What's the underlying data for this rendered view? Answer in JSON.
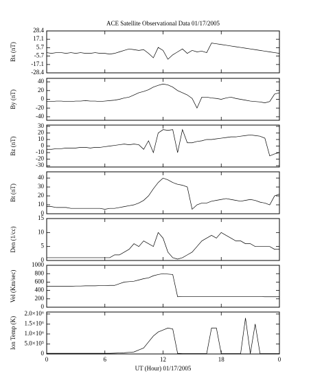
{
  "chart_data": [
    {
      "type": "line",
      "title": "ACE Satellite Observational Data   01/17/2005",
      "y_label": "Bx (nT)",
      "x": [
        0,
        0.5,
        1,
        1.5,
        2,
        2.5,
        3,
        3.5,
        4,
        4.5,
        5,
        5.5,
        6,
        6.5,
        7,
        7.5,
        8,
        8.5,
        9,
        9.5,
        10,
        10.5,
        11,
        11.5,
        12,
        12.5,
        13,
        13.5,
        14,
        14.5,
        15,
        15.5,
        16,
        16.5,
        17,
        17.5,
        18,
        18.5,
        19,
        19.5,
        20,
        20.5,
        21,
        21.5,
        22,
        22.5,
        23,
        23.5,
        24
      ],
      "values": [
        -1,
        -2,
        -1,
        -1,
        -2,
        -1,
        -2,
        -1,
        -2,
        -2,
        -1,
        -2,
        -2,
        -3,
        -2,
        0,
        2,
        4,
        3,
        2,
        3,
        -2,
        -8,
        6,
        2,
        -10,
        -4,
        0,
        4,
        -2,
        2,
        0,
        1,
        -1,
        12,
        11,
        10,
        9,
        8,
        7,
        6,
        5,
        4,
        3,
        2,
        1,
        0,
        -1,
        -2
      ],
      "xlim": [
        0,
        24
      ],
      "xticks": [
        0,
        6,
        12,
        18,
        {
          "value": 24,
          "label": "0"
        }
      ],
      "ylim": [
        -28.4,
        28.4
      ],
      "yticks": [
        28.4,
        17.1,
        5.7,
        -5.7,
        -17.1,
        -28.4
      ]
    },
    {
      "type": "line",
      "y_label": "By (nT)",
      "x": [
        0,
        0.5,
        1,
        1.5,
        2,
        2.5,
        3,
        3.5,
        4,
        4.5,
        5,
        5.5,
        6,
        6.5,
        7,
        7.5,
        8,
        8.5,
        9,
        9.5,
        10,
        10.5,
        11,
        11.5,
        12,
        12.5,
        13,
        13.5,
        14,
        14.5,
        15,
        15.5,
        16,
        16.5,
        17,
        17.5,
        18,
        18.5,
        19,
        19.5,
        20,
        20.5,
        21,
        21.5,
        22,
        22.5,
        23,
        23.5,
        24
      ],
      "values": [
        -5,
        -5,
        -4,
        -4,
        -5,
        -5,
        -4,
        -4,
        -3,
        -4,
        -4,
        -5,
        -4,
        -3,
        -2,
        0,
        3,
        5,
        10,
        15,
        18,
        22,
        28,
        32,
        35,
        33,
        28,
        20,
        15,
        10,
        2,
        -20,
        5,
        5,
        3,
        2,
        0,
        3,
        5,
        2,
        0,
        -2,
        -4,
        -5,
        -6,
        -8,
        -5,
        12,
        15
      ],
      "xlim": [
        0,
        24
      ],
      "xticks": [
        0,
        6,
        12,
        18,
        {
          "value": 24,
          "label": "0"
        }
      ],
      "ylim": [
        -48,
        48
      ],
      "yticks": [
        40,
        20,
        0,
        -20,
        -40
      ]
    },
    {
      "type": "line",
      "y_label": "Bz (nT)",
      "x": [
        0,
        0.5,
        1,
        1.5,
        2,
        2.5,
        3,
        3.5,
        4,
        4.5,
        5,
        5.5,
        6,
        6.5,
        7,
        7.5,
        8,
        8.5,
        9,
        9.5,
        10,
        10.5,
        11,
        11.5,
        12,
        12.5,
        13,
        13.5,
        14,
        14.5,
        15,
        15.5,
        16,
        16.5,
        17,
        17.5,
        18,
        18.5,
        19,
        19.5,
        20,
        20.5,
        21,
        21.5,
        22,
        22.5,
        23,
        23.5,
        24
      ],
      "values": [
        -5,
        -5,
        -4,
        -4,
        -3,
        -3,
        -3,
        -2,
        -2,
        -3,
        -2,
        -2,
        -1,
        0,
        1,
        2,
        3,
        2,
        3,
        2,
        -5,
        8,
        -10,
        20,
        25,
        24,
        25,
        -10,
        25,
        5,
        5,
        7,
        8,
        10,
        10,
        11,
        12,
        13,
        14,
        14,
        15,
        16,
        17,
        16,
        15,
        12,
        -15,
        -12,
        -10
      ],
      "xlim": [
        0,
        24
      ],
      "xticks": [
        0,
        6,
        12,
        18,
        {
          "value": 24,
          "label": "0"
        }
      ],
      "ylim": [
        -32,
        32
      ],
      "yticks": [
        30,
        20,
        10,
        0,
        -10,
        -20,
        -30
      ]
    },
    {
      "type": "line",
      "y_label": "Bt (nT)",
      "x": [
        0,
        0.5,
        1,
        1.5,
        2,
        2.5,
        3,
        3.5,
        4,
        4.5,
        5,
        5.5,
        6,
        6.5,
        7,
        7.5,
        8,
        8.5,
        9,
        9.5,
        10,
        10.5,
        11,
        11.5,
        12,
        12.5,
        13,
        13.5,
        14,
        14.5,
        15,
        15.5,
        16,
        16.5,
        17,
        17.5,
        18,
        18.5,
        19,
        19.5,
        20,
        20.5,
        21,
        21.5,
        22,
        22.5,
        23,
        23.5,
        24
      ],
      "values": [
        8,
        8,
        7,
        7,
        7,
        6,
        6,
        6,
        6,
        6,
        6,
        6,
        5,
        6,
        6,
        7,
        8,
        9,
        10,
        12,
        15,
        20,
        28,
        35,
        40,
        38,
        35,
        33,
        32,
        30,
        5,
        10,
        12,
        12,
        14,
        15,
        16,
        17,
        16,
        15,
        14,
        15,
        16,
        15,
        13,
        12,
        10,
        20,
        22
      ],
      "xlim": [
        0,
        24
      ],
      "xticks": [
        0,
        6,
        12,
        18,
        {
          "value": 24,
          "label": "0"
        }
      ],
      "ylim": [
        0,
        47
      ],
      "yticks": [
        0,
        10,
        20,
        30,
        40
      ]
    },
    {
      "type": "line",
      "y_label": "Den (1/cc)",
      "x": [
        0,
        0.5,
        1,
        1.5,
        2,
        2.5,
        3,
        3.5,
        4,
        4.5,
        5,
        5.5,
        6,
        6.5,
        7,
        7.5,
        8,
        8.5,
        9,
        9.5,
        10,
        10.5,
        11,
        11.5,
        12,
        12.5,
        13,
        13.5,
        14,
        14.5,
        15,
        15.5,
        16,
        16.5,
        17,
        17.5,
        18,
        18.5,
        19,
        19.5,
        20,
        20.5,
        21,
        21.5,
        22,
        22.5,
        23,
        23.5,
        24
      ],
      "values": [
        1,
        1,
        1,
        1,
        1,
        1,
        1,
        1,
        1,
        1,
        1,
        1,
        1,
        1,
        2,
        2,
        3,
        4,
        6,
        5,
        7,
        6,
        5,
        10,
        8,
        3,
        1,
        0.5,
        1,
        2,
        3,
        5,
        7,
        8,
        9,
        8,
        10,
        9,
        8,
        7,
        7,
        6,
        6,
        5,
        5,
        5,
        5,
        4,
        4
      ],
      "xlim": [
        0,
        24
      ],
      "xticks": [
        0,
        6,
        12,
        18,
        {
          "value": 24,
          "label": "0"
        }
      ],
      "ylim": [
        0,
        15
      ],
      "yticks": [
        0,
        5,
        10,
        15
      ]
    },
    {
      "type": "line",
      "y_label": "Vel (Km/sec)",
      "x": [
        0,
        0.5,
        1,
        1.5,
        2,
        2.5,
        3,
        3.5,
        4,
        4.5,
        5,
        5.5,
        6,
        6.5,
        7,
        7.5,
        8,
        8.5,
        9,
        9.5,
        10,
        10.5,
        11,
        11.5,
        12,
        12.5,
        13,
        13.5,
        14,
        14.5,
        15,
        15.5,
        16,
        16.5,
        17,
        17.5,
        18,
        18.5,
        19,
        19.5,
        20,
        20.5,
        21,
        21.5,
        22,
        22.5,
        23,
        23.5,
        24
      ],
      "values": [
        500,
        500,
        500,
        500,
        500,
        500,
        505,
        505,
        510,
        510,
        510,
        515,
        515,
        520,
        520,
        560,
        600,
        610,
        620,
        650,
        680,
        700,
        750,
        780,
        800,
        790,
        780,
        250,
        255,
        255,
        255,
        255,
        255,
        255,
        255,
        255,
        255,
        255,
        255,
        255,
        255,
        255,
        255,
        255,
        255,
        250,
        250,
        250,
        250
      ],
      "xlim": [
        0,
        24
      ],
      "xticks": [
        0,
        6,
        12,
        18,
        {
          "value": 24,
          "label": "0"
        }
      ],
      "ylim": [
        0,
        1000
      ],
      "yticks": [
        0,
        200,
        400,
        600,
        800,
        1000
      ]
    },
    {
      "type": "line",
      "y_label": "Ion Temp (K)",
      "x_label": "UT (Hour)   01/17/2005",
      "x": [
        0,
        0.5,
        1,
        1.5,
        2,
        2.5,
        3,
        3.5,
        4,
        4.5,
        5,
        5.5,
        6,
        6.5,
        7,
        7.5,
        8,
        8.5,
        9,
        9.5,
        10,
        10.5,
        11,
        11.5,
        12,
        12.5,
        13,
        13.5,
        14,
        14.5,
        15,
        15.5,
        16,
        16.5,
        17,
        17.5,
        18,
        18.5,
        19,
        19.5,
        20,
        20.5,
        21,
        21.5,
        22,
        22.5,
        23,
        23.5,
        24
      ],
      "values": [
        30000,
        30000,
        30000,
        30000,
        30000,
        30000,
        30000,
        30000,
        30000,
        30000,
        30000,
        30000,
        30000,
        30000,
        40000,
        50000,
        60000,
        80000,
        100000,
        200000,
        300000,
        600000,
        900000,
        1100000,
        1200000,
        1300000,
        1250000,
        30000,
        20000,
        20000,
        20000,
        20000,
        20000,
        20000,
        1300000,
        1300000,
        20000,
        20000,
        20000,
        20000,
        20000,
        1800000,
        20000,
        1500000,
        20000,
        20000,
        20000,
        20000,
        20000
      ],
      "xlim": [
        0,
        24
      ],
      "xticks": [
        0,
        6,
        12,
        18,
        {
          "value": 24,
          "label": "0"
        }
      ],
      "ylim": [
        0,
        2100000
      ],
      "yticks": [
        0,
        {
          "value": 500000,
          "label": "5.0×10⁵"
        },
        {
          "value": 1000000,
          "label": "1.0×10⁶"
        },
        {
          "value": 1500000,
          "label": "1.5×10⁶"
        },
        {
          "value": 2000000,
          "label": "2.0×10⁶"
        }
      ]
    }
  ]
}
